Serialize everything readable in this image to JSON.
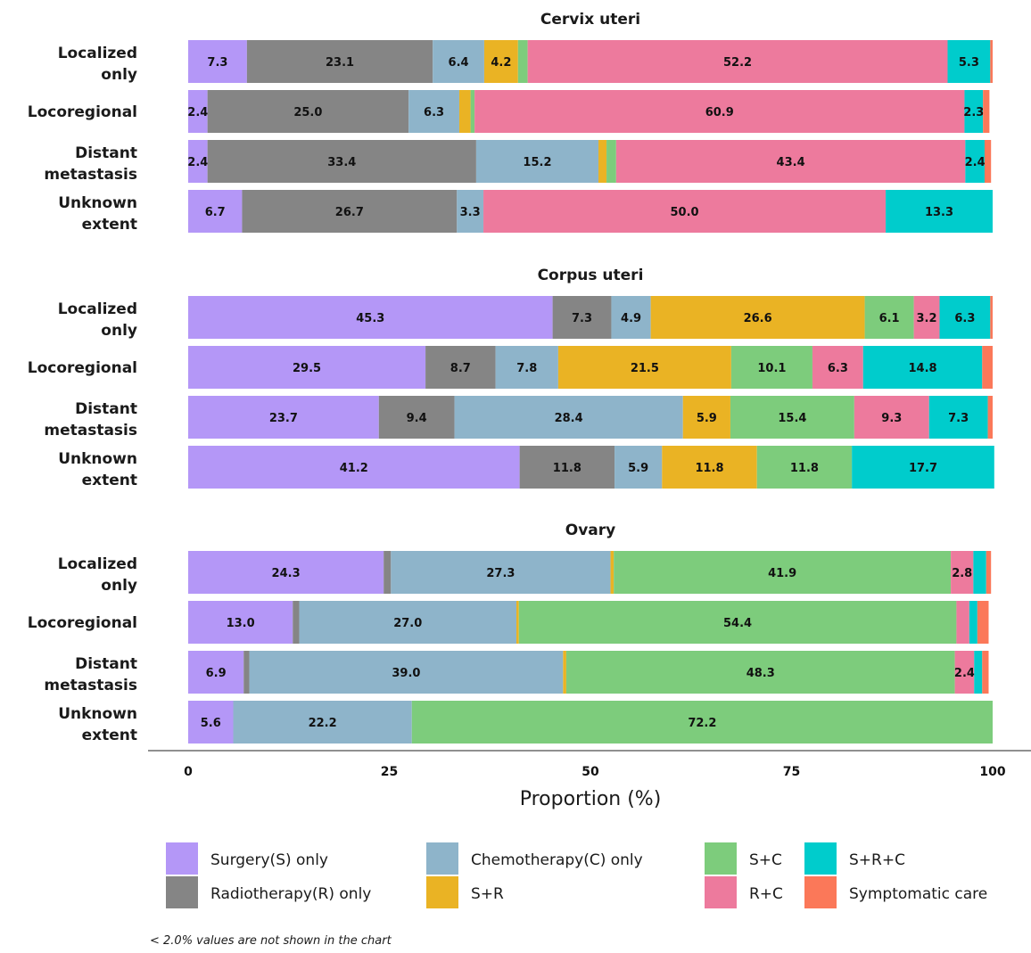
{
  "chart_data": {
    "type": "bar",
    "orientation": "horizontal",
    "stacked": true,
    "xlabel": "Proportion (%)",
    "xlim": [
      0,
      100
    ],
    "xticks": [
      0,
      25,
      50,
      75,
      100
    ],
    "grid": false,
    "legend_position": "bottom",
    "footnote": "< 2.0% values are not shown in the chart",
    "label_threshold": 2.0,
    "series": [
      {
        "name": "Surgery(S) only",
        "color": "#b497f7"
      },
      {
        "name": "Radiotherapy(R) only",
        "color": "#858585"
      },
      {
        "name": "Chemotherapy(C) only",
        "color": "#8eb4ca"
      },
      {
        "name": "S+R",
        "color": "#eab324"
      },
      {
        "name": "S+C",
        "color": "#7dcc7c"
      },
      {
        "name": "R+C",
        "color": "#ed7a9d"
      },
      {
        "name": "S+R+C",
        "color": "#00cccc"
      },
      {
        "name": "Symptomatic care",
        "color": "#fb7859"
      }
    ],
    "panels": [
      {
        "title": "Cervix uteri",
        "rows": [
          {
            "label": "Localized only",
            "values": [
              7.3,
              23.1,
              6.4,
              4.2,
              1.2,
              52.2,
              5.3,
              0.3
            ]
          },
          {
            "label": "Locoregional",
            "values": [
              2.4,
              25.0,
              6.3,
              1.4,
              0.5,
              60.9,
              2.3,
              0.8
            ]
          },
          {
            "label": "Distant metastasis",
            "values": [
              2.4,
              33.4,
              15.2,
              1.0,
              1.2,
              43.4,
              2.4,
              0.8
            ]
          },
          {
            "label": "Unknown extent",
            "values": [
              6.7,
              26.7,
              3.3,
              0,
              0,
              50.0,
              13.3,
              0
            ]
          }
        ]
      },
      {
        "title": "Corpus uteri",
        "rows": [
          {
            "label": "Localized only",
            "values": [
              45.3,
              7.3,
              4.9,
              26.6,
              6.1,
              3.2,
              6.3,
              0.3
            ]
          },
          {
            "label": "Locoregional",
            "values": [
              29.5,
              8.7,
              7.8,
              21.5,
              10.1,
              6.3,
              14.8,
              1.3
            ]
          },
          {
            "label": "Distant metastasis",
            "values": [
              23.7,
              9.4,
              28.4,
              5.9,
              15.4,
              9.3,
              7.3,
              0.6
            ]
          },
          {
            "label": "Unknown extent",
            "values": [
              41.2,
              11.8,
              5.9,
              11.8,
              11.8,
              0,
              17.7,
              0
            ]
          }
        ]
      },
      {
        "title": "Ovary",
        "rows": [
          {
            "label": "Localized only",
            "values": [
              24.3,
              0.9,
              27.3,
              0.4,
              41.9,
              2.8,
              1.6,
              0.6
            ]
          },
          {
            "label": "Locoregional",
            "values": [
              13.0,
              0.8,
              27.0,
              0.3,
              54.4,
              1.6,
              1.0,
              1.4
            ]
          },
          {
            "label": "Distant metastasis",
            "values": [
              6.9,
              0.7,
              39.0,
              0.4,
              48.3,
              2.4,
              1.0,
              0.8
            ]
          },
          {
            "label": "Unknown extent",
            "values": [
              5.6,
              0,
              22.2,
              0,
              72.2,
              0,
              0,
              0
            ]
          }
        ]
      }
    ]
  }
}
